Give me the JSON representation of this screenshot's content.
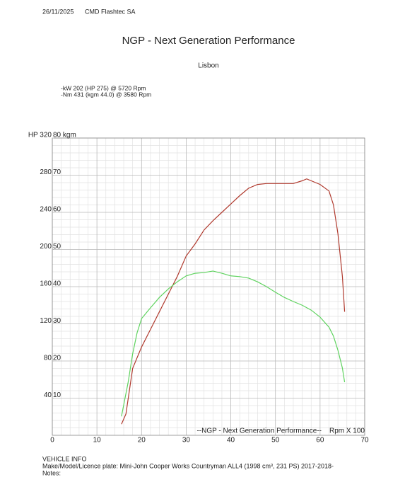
{
  "header": {
    "date": "26/11/2025",
    "company": "CMD Flashtec SA"
  },
  "chart_data": {
    "type": "line",
    "title": "NGP - Next Generation Performance",
    "subtitle": "Lisbon",
    "summary": [
      "-kW 202 (HP 275) @ 5720 Rpm",
      "-Nm 431 (kgm 44.0) @ 3580 Rpm"
    ],
    "annotation": "--NGP - Next Generation Performance--",
    "x_label": "Rpm X 100",
    "xlim": [
      0,
      70
    ],
    "xticks": [
      0,
      10,
      20,
      30,
      40,
      50,
      60,
      70
    ],
    "ylim": [
      0,
      320
    ],
    "yticks": [
      40,
      80,
      120,
      160,
      200,
      240,
      280,
      {
        "value": 320,
        "label": "HP 320"
      }
    ],
    "y2lim": [
      0,
      80
    ],
    "y2ticks": [
      10,
      20,
      30,
      40,
      50,
      60,
      70,
      {
        "value": 80,
        "label": "80 kgm"
      }
    ],
    "grid": true,
    "series": [
      {
        "name": "HP",
        "color": "#b03a2e",
        "axis": "y",
        "x": [
          15.5,
          16.5,
          18,
          20,
          22,
          24,
          26,
          28,
          30,
          32,
          34,
          36,
          38,
          40,
          42,
          44,
          46,
          48,
          50,
          52,
          54,
          56,
          57,
          58,
          60,
          62,
          63,
          64,
          65,
          65.5
        ],
        "values": [
          12,
          23,
          72,
          95,
          114,
          133,
          152,
          171,
          193,
          206,
          221,
          231,
          240,
          249,
          258,
          266,
          270,
          271,
          271,
          271,
          271,
          274,
          276,
          274,
          270,
          263,
          248,
          217,
          171,
          133
        ]
      },
      {
        "name": "kgm",
        "color": "#5fd35f",
        "axis": "y2",
        "x": [
          15.5,
          17,
          18,
          19,
          20,
          22,
          24,
          26,
          28,
          30,
          32,
          34,
          36,
          38,
          40,
          42,
          44,
          46,
          48,
          50,
          52,
          54,
          56,
          58,
          60,
          62,
          63,
          64,
          65,
          65.5
        ],
        "values": [
          5.1,
          14.3,
          21.9,
          27.6,
          31.4,
          34.3,
          37.1,
          39.4,
          41.3,
          42.9,
          43.6,
          43.8,
          44.2,
          43.6,
          42.9,
          42.7,
          42.3,
          41.3,
          40,
          38.5,
          37.1,
          36,
          35,
          33.7,
          31.8,
          29.1,
          26.7,
          22.9,
          18.1,
          14.3
        ]
      }
    ]
  },
  "footer": {
    "heading": "VEHICLE INFO",
    "vehicle": "Make/Model/Licence plate: Mini-John Cooper Works Countryman ALL4 (1998 cm³, 231 PS) 2017-2018-",
    "notes": "Notes:"
  }
}
